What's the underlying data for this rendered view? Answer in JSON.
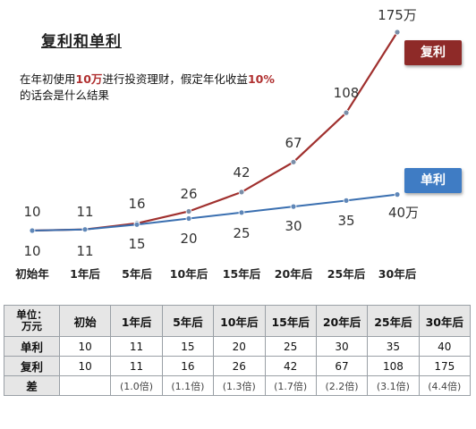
{
  "title": "复利和单利",
  "note": {
    "part1": "在年初使用",
    "amount": "10万",
    "part2": "进行投资理财，假定年化收益",
    "rate": "10%",
    "part3": "的话会是什么结果"
  },
  "legend": {
    "compound": "复利",
    "simple": "单利"
  },
  "colors": {
    "compound": "#a0302e",
    "simple": "#3a6fb0",
    "compound_badge": "#8e2a28",
    "simple_badge": "#3f7cc4"
  },
  "chart_data": {
    "type": "line",
    "categories": [
      "初始年",
      "1年后",
      "5年后",
      "10年后",
      "15年后",
      "20年后",
      "25年后",
      "30年后"
    ],
    "series": [
      {
        "name": "复利",
        "values": [
          10,
          11,
          16,
          26,
          42,
          67,
          108,
          175
        ],
        "labels": [
          "10",
          "11",
          "16",
          "26",
          "42",
          "67",
          "108",
          "175万"
        ]
      },
      {
        "name": "单利",
        "values": [
          10,
          11,
          15,
          20,
          25,
          30,
          35,
          40
        ],
        "labels": [
          "10",
          "11",
          "15",
          "20",
          "25",
          "30",
          "35",
          "40万"
        ]
      }
    ],
    "title": "复利和单利",
    "ylim": [
      0,
      180
    ]
  },
  "table": {
    "corner": [
      "单位：",
      "万元"
    ],
    "headers": [
      "初始",
      "1年后",
      "5年后",
      "10年后",
      "15年后",
      "20年后",
      "25年后",
      "30年后"
    ],
    "rows": [
      {
        "label": "单利",
        "cells": [
          "10",
          "11",
          "15",
          "20",
          "25",
          "30",
          "35",
          "40"
        ]
      },
      {
        "label": "复利",
        "cells": [
          "10",
          "11",
          "16",
          "26",
          "42",
          "67",
          "108",
          "175"
        ]
      },
      {
        "label": "差",
        "cells": [
          "",
          "(1.0倍)",
          "(1.1倍)",
          "(1.3倍)",
          "(1.7倍)",
          "(2.2倍)",
          "(3.1倍)",
          "(4.4倍)"
        ]
      }
    ]
  }
}
